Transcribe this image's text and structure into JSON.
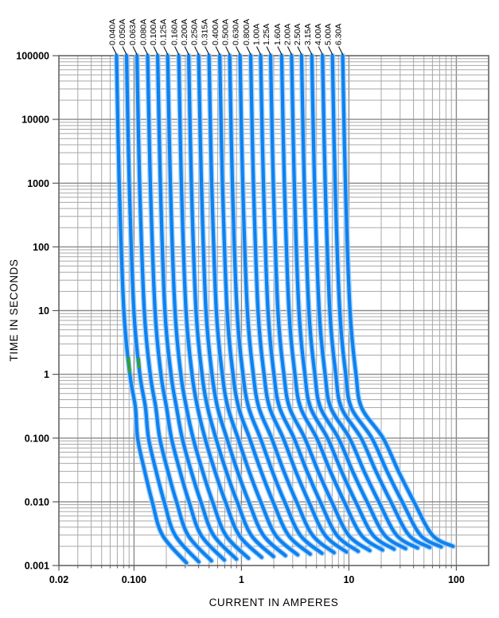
{
  "chart_data": {
    "type": "line",
    "title": "",
    "xlabel": "CURRENT IN AMPERES",
    "ylabel": "TIME IN SECONDS",
    "x_scale": "log",
    "y_scale": "log",
    "xlim": [
      0.02,
      200
    ],
    "ylim": [
      0.001,
      100000
    ],
    "grid": true,
    "legend_position": "top-labels-with-leader-lines",
    "x_ticks": [
      {
        "value": 0.02,
        "label": "0.02"
      },
      {
        "value": 0.1,
        "label": "0.100"
      },
      {
        "value": 1,
        "label": "1"
      },
      {
        "value": 10,
        "label": "10"
      },
      {
        "value": 100,
        "label": "100"
      }
    ],
    "y_ticks": [
      {
        "value": 100000,
        "label": "100000"
      },
      {
        "value": 10000,
        "label": "10000"
      },
      {
        "value": 1000,
        "label": "1000"
      },
      {
        "value": 100,
        "label": "100"
      },
      {
        "value": 10,
        "label": "10"
      },
      {
        "value": 1,
        "label": "1"
      },
      {
        "value": 0.1,
        "label": "0.100"
      },
      {
        "value": 0.01,
        "label": "0.010"
      },
      {
        "value": 0.001,
        "label": "0.001"
      }
    ],
    "series": [
      {
        "label": "0.040A",
        "rating_amps": 0.04,
        "points": [
          [
            0.0688,
            100000
          ],
          [
            0.0729,
            1000
          ],
          [
            0.0805,
            10
          ],
          [
            0.0915,
            1
          ],
          [
            0.1032,
            0.3
          ],
          [
            0.108,
            0.1
          ],
          [
            0.126,
            0.03
          ],
          [
            0.148,
            0.01
          ],
          [
            0.184,
            0.003
          ],
          [
            0.308,
            0.0011
          ]
        ]
      },
      {
        "label": "0.050A",
        "rating_amps": 0.05,
        "points": [
          [
            0.0853,
            100000
          ],
          [
            0.0904,
            1000
          ],
          [
            0.0997,
            10
          ],
          [
            0.1134,
            1
          ],
          [
            0.1279,
            0.3
          ],
          [
            0.1364,
            0.1
          ],
          [
            0.1608,
            0.03
          ],
          [
            0.1911,
            0.01
          ],
          [
            0.2411,
            0.003
          ],
          [
            0.4011,
            0.00114
          ]
        ]
      },
      {
        "label": "0.063A",
        "rating_amps": 0.063,
        "points": [
          [
            0.1065,
            100000
          ],
          [
            0.1128,
            1000
          ],
          [
            0.1246,
            10
          ],
          [
            0.1416,
            1
          ],
          [
            0.1597,
            0.3
          ],
          [
            0.1735,
            0.1
          ],
          [
            0.2068,
            0.03
          ],
          [
            0.2486,
            0.01
          ],
          [
            0.3179,
            0.003
          ],
          [
            0.5258,
            0.00118
          ]
        ]
      },
      {
        "label": "0.080A",
        "rating_amps": 0.08,
        "points": [
          [
            0.134,
            100000
          ],
          [
            0.142,
            1000
          ],
          [
            0.157,
            10
          ],
          [
            0.178,
            1
          ],
          [
            0.201,
            0.3
          ],
          [
            0.223,
            0.1
          ],
          [
            0.268,
            0.03
          ],
          [
            0.325,
            0.01
          ],
          [
            0.421,
            0.003
          ],
          [
            0.693,
            0.00122
          ]
        ]
      },
      {
        "label": "0.100A",
        "rating_amps": 0.1,
        "points": [
          [
            0.166,
            100000
          ],
          [
            0.176,
            1000
          ],
          [
            0.194,
            10
          ],
          [
            0.221,
            1
          ],
          [
            0.249,
            0.3
          ],
          [
            0.281,
            0.1
          ],
          [
            0.341,
            0.03
          ],
          [
            0.419,
            0.01
          ],
          [
            0.549,
            0.003
          ],
          [
            0.899,
            0.00126
          ]
        ]
      },
      {
        "label": "0.125A",
        "rating_amps": 0.125,
        "points": [
          [
            0.206,
            100000
          ],
          [
            0.218,
            1000
          ],
          [
            0.241,
            10
          ],
          [
            0.273,
            1
          ],
          [
            0.308,
            0.3
          ],
          [
            0.355,
            0.1
          ],
          [
            0.435,
            0.03
          ],
          [
            0.539,
            0.01
          ],
          [
            0.714,
            0.003
          ],
          [
            1.164,
            0.0013
          ]
        ]
      },
      {
        "label": "0.160A",
        "rating_amps": 0.16,
        "points": [
          [
            0.261,
            100000
          ],
          [
            0.276,
            1000
          ],
          [
            0.305,
            10
          ],
          [
            0.347,
            1
          ],
          [
            0.391,
            0.3
          ],
          [
            0.458,
            0.1
          ],
          [
            0.567,
            0.03
          ],
          [
            0.71,
            0.01
          ],
          [
            0.95,
            0.003
          ],
          [
            1.542,
            0.00134
          ]
        ]
      },
      {
        "label": "0.200A",
        "rating_amps": 0.2,
        "points": [
          [
            0.323,
            100000
          ],
          [
            0.342,
            1000
          ],
          [
            0.378,
            10
          ],
          [
            0.43,
            1
          ],
          [
            0.485,
            0.3
          ],
          [
            0.578,
            0.1
          ],
          [
            0.722,
            0.03
          ],
          [
            0.912,
            0.01
          ],
          [
            1.232,
            0.003
          ],
          [
            1.992,
            0.00138
          ]
        ]
      },
      {
        "label": "0.250A",
        "rating_amps": 0.25,
        "points": [
          [
            0.4,
            100000
          ],
          [
            0.424,
            1000
          ],
          [
            0.468,
            10
          ],
          [
            0.532,
            1
          ],
          [
            0.6,
            0.3
          ],
          [
            0.73,
            0.1
          ],
          [
            0.919,
            0.03
          ],
          [
            1.17,
            0.01
          ],
          [
            1.596,
            0.003
          ],
          [
            2.571,
            0.00143
          ]
        ]
      },
      {
        "label": "0.315A",
        "rating_amps": 0.315,
        "points": [
          [
            0.499,
            100000
          ],
          [
            0.529,
            1000
          ],
          [
            0.584,
            10
          ],
          [
            0.664,
            1
          ],
          [
            0.749,
            0.3
          ],
          [
            0.928,
            0.1
          ],
          [
            1.179,
            0.03
          ],
          [
            1.513,
            0.01
          ],
          [
            2.081,
            0.003
          ],
          [
            3.34,
            0.00147
          ]
        ]
      },
      {
        "label": "0.400A",
        "rating_amps": 0.4,
        "points": [
          [
            0.628,
            100000
          ],
          [
            0.666,
            1000
          ],
          [
            0.735,
            10
          ],
          [
            0.835,
            1
          ],
          [
            0.942,
            0.3
          ],
          [
            1.189,
            0.1
          ],
          [
            1.524,
            0.03
          ],
          [
            1.971,
            0.01
          ],
          [
            2.731,
            0.003
          ],
          [
            4.371,
            0.00151
          ]
        ]
      },
      {
        "label": "0.500A",
        "rating_amps": 0.5,
        "points": [
          [
            0.778,
            100000
          ],
          [
            0.824,
            1000
          ],
          [
            0.91,
            10
          ],
          [
            1.034,
            1
          ],
          [
            1.166,
            0.3
          ],
          [
            1.5,
            0.1
          ],
          [
            1.938,
            0.03
          ],
          [
            2.525,
            0.01
          ],
          [
            3.525,
            0.003
          ],
          [
            5.625,
            0.00155
          ]
        ]
      },
      {
        "label": "0.630A",
        "rating_amps": 0.63,
        "points": [
          [
            0.97,
            100000
          ],
          [
            1.028,
            1000
          ],
          [
            1.135,
            10
          ],
          [
            1.29,
            1
          ],
          [
            1.455,
            0.3
          ],
          [
            1.907,
            0.1
          ],
          [
            2.483,
            0.03
          ],
          [
            3.259,
            0.01
          ],
          [
            4.582,
            0.003
          ],
          [
            7.29,
            0.00159
          ]
        ]
      },
      {
        "label": "0.800A",
        "rating_amps": 0.8,
        "points": [
          [
            1.22,
            100000
          ],
          [
            1.293,
            1000
          ],
          [
            1.427,
            10
          ],
          [
            1.623,
            1
          ],
          [
            1.83,
            0.3
          ],
          [
            2.444,
            0.1
          ],
          [
            3.205,
            0.03
          ],
          [
            4.236,
            0.01
          ],
          [
            5.996,
            0.003
          ],
          [
            9.518,
            0.00163
          ]
        ]
      },
      {
        "label": "1.00A",
        "rating_amps": 1.0,
        "points": [
          [
            1.51,
            100000
          ],
          [
            1.601,
            1000
          ],
          [
            1.767,
            10
          ],
          [
            2.008,
            1
          ],
          [
            2.265,
            0.3
          ],
          [
            3.082,
            0.1
          ],
          [
            4.073,
            0.03
          ],
          [
            5.418,
            0.01
          ],
          [
            7.718,
            0.003
          ],
          [
            12.22,
            0.00167
          ]
        ]
      },
      {
        "label": "1.25A",
        "rating_amps": 1.25,
        "points": [
          [
            1.869,
            100000
          ],
          [
            1.981,
            1000
          ],
          [
            2.186,
            10
          ],
          [
            2.485,
            1
          ],
          [
            2.803,
            0.3
          ],
          [
            3.886,
            0.1
          ],
          [
            5.174,
            0.03
          ],
          [
            6.926,
            0.01
          ],
          [
            9.926,
            0.003
          ],
          [
            15.68,
            0.00171
          ]
        ]
      },
      {
        "label": "1.60A",
        "rating_amps": 1.6,
        "points": [
          [
            2.368,
            100000
          ],
          [
            2.51,
            1000
          ],
          [
            2.771,
            10
          ],
          [
            3.149,
            1
          ],
          [
            3.552,
            0.3
          ],
          [
            5.018,
            0.1
          ],
          [
            6.728,
            0.03
          ],
          [
            9.062,
            0.01
          ],
          [
            13.06,
            0.003
          ],
          [
            20.58,
            0.00175
          ]
        ]
      },
      {
        "label": "2.00A",
        "rating_amps": 2.0,
        "points": [
          [
            2.93,
            100000
          ],
          [
            3.106,
            1000
          ],
          [
            3.428,
            10
          ],
          [
            3.897,
            1
          ],
          [
            4.395,
            0.3
          ],
          [
            6.327,
            0.1
          ],
          [
            8.541,
            0.03
          ],
          [
            11.57,
            0.01
          ],
          [
            16.77,
            0.003
          ],
          [
            26.37,
            0.0018
          ]
        ]
      },
      {
        "label": "2.50A",
        "rating_amps": 2.5,
        "points": [
          [
            3.625,
            100000
          ],
          [
            3.843,
            1000
          ],
          [
            4.241,
            10
          ],
          [
            4.821,
            1
          ],
          [
            5.438,
            0.3
          ],
          [
            7.977,
            0.1
          ],
          [
            10.84,
            0.03
          ],
          [
            14.77,
            0.01
          ],
          [
            21.52,
            0.003
          ],
          [
            33.77,
            0.00184
          ]
        ]
      },
      {
        "label": "3.15A",
        "rating_amps": 3.15,
        "points": [
          [
            4.52,
            100000
          ],
          [
            4.791,
            1000
          ],
          [
            5.289,
            10
          ],
          [
            6.012,
            1
          ],
          [
            6.781,
            0.3
          ],
          [
            10.14,
            0.1
          ],
          [
            13.87,
            0.03
          ],
          [
            19.0,
            0.01
          ],
          [
            27.82,
            0.003
          ],
          [
            43.57,
            0.00188
          ]
        ]
      },
      {
        "label": "4.00A",
        "rating_amps": 4.0,
        "points": [
          [
            5.68,
            100000
          ],
          [
            6.021,
            1000
          ],
          [
            6.646,
            10
          ],
          [
            7.554,
            1
          ],
          [
            8.52,
            0.3
          ],
          [
            12.98,
            0.1
          ],
          [
            17.87,
            0.03
          ],
          [
            24.62,
            0.01
          ],
          [
            36.22,
            0.003
          ],
          [
            56.62,
            0.00192
          ]
        ]
      },
      {
        "label": "5.00A",
        "rating_amps": 5.0,
        "points": [
          [
            7.025,
            100000
          ],
          [
            7.447,
            1000
          ],
          [
            8.219,
            10
          ],
          [
            9.343,
            1
          ],
          [
            10.54,
            0.3
          ],
          [
            16.36,
            0.1
          ],
          [
            22.67,
            0.03
          ],
          [
            31.39,
            0.01
          ],
          [
            46.39,
            0.003
          ],
          [
            72.39,
            0.00196
          ]
        ]
      },
      {
        "label": "6.30A",
        "rating_amps": 6.3,
        "points": [
          [
            8.757,
            100000
          ],
          [
            9.282,
            1000
          ],
          [
            10.24,
            10
          ],
          [
            11.65,
            1
          ],
          [
            13.14,
            0.3
          ],
          [
            20.79,
            0.1
          ],
          [
            28.98,
            0.03
          ],
          [
            40.32,
            0.01
          ],
          [
            59.85,
            0.003
          ],
          [
            93.24,
            0.002
          ]
        ]
      }
    ],
    "highlight_segments": [
      {
        "series_label": "0.040A",
        "t_from": 1.9,
        "t_to": 1.05
      },
      {
        "series_label": "0.050A",
        "t_from": 1.8,
        "t_to": 1.25
      }
    ],
    "colors": {
      "curve": "#0e82f0",
      "curve_halo": "#9dcdf9",
      "highlight": "#2f9e44",
      "grid_minor": "#a8a8a8",
      "grid_major": "#8a8a8a",
      "border": "#5a5a5a",
      "leader": "#111111",
      "text": "#000000"
    }
  }
}
